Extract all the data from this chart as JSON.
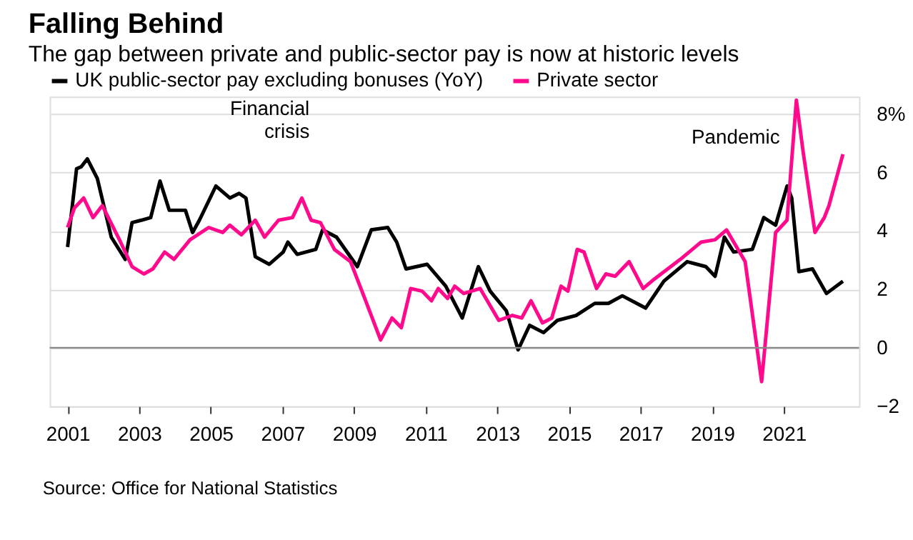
{
  "chart_data": {
    "type": "line",
    "title": "Falling Behind",
    "subtitle": "The gap between private and public-sector pay is now at historic levels",
    "series": [
      {
        "name": "UK public-sector pay excluding bonuses (YoY)",
        "color": "#000000",
        "x": [
          2001.0,
          2001.25,
          2001.38,
          2001.55,
          2001.83,
          2002.22,
          2002.61,
          2002.8,
          2003.06,
          2003.32,
          2003.58,
          2003.84,
          2004.29,
          2004.49,
          2004.68,
          2005.14,
          2005.53,
          2005.79,
          2005.98,
          2006.24,
          2006.63,
          2007.02,
          2007.15,
          2007.41,
          2007.93,
          2008.12,
          2008.51,
          2009.09,
          2009.48,
          2009.94,
          2010.19,
          2010.45,
          2011.04,
          2011.56,
          2012.02,
          2012.47,
          2012.8,
          2013.25,
          2013.58,
          2013.9,
          2014.29,
          2014.68,
          2015.2,
          2015.72,
          2016.1,
          2016.49,
          2017.14,
          2017.65,
          2018.3,
          2018.82,
          2019.08,
          2019.34,
          2019.6,
          2020.12,
          2020.44,
          2020.77,
          2021.09,
          2021.22,
          2021.42,
          2021.8,
          2022.19,
          2022.65
        ],
        "values": [
          3.45,
          6.13,
          6.2,
          6.47,
          5.8,
          3.79,
          3.03,
          4.29,
          4.37,
          4.46,
          5.71,
          4.71,
          4.71,
          3.95,
          4.37,
          5.54,
          5.13,
          5.29,
          5.13,
          3.12,
          2.86,
          3.28,
          3.62,
          3.2,
          3.37,
          4.04,
          3.79,
          2.78,
          4.04,
          4.12,
          3.62,
          2.7,
          2.86,
          2.11,
          1.02,
          2.78,
          1.94,
          1.27,
          -0.07,
          0.77,
          0.52,
          0.94,
          1.11,
          1.52,
          1.52,
          1.78,
          1.36,
          2.28,
          2.95,
          2.78,
          2.45,
          3.79,
          3.28,
          3.37,
          4.46,
          4.2,
          5.54,
          5.13,
          2.61,
          2.7,
          1.86,
          2.28
        ]
      },
      {
        "name": "Private sector",
        "color": "#ff0a8c",
        "x": [
          2001.0,
          2001.19,
          2001.45,
          2001.71,
          2001.97,
          2002.48,
          2002.8,
          2003.13,
          2003.38,
          2003.71,
          2003.97,
          2004.42,
          2004.94,
          2005.33,
          2005.53,
          2005.85,
          2006.24,
          2006.5,
          2006.89,
          2007.28,
          2007.54,
          2007.8,
          2008.06,
          2008.45,
          2008.9,
          2009.22,
          2009.74,
          2010.06,
          2010.32,
          2010.58,
          2010.9,
          2011.16,
          2011.35,
          2011.61,
          2011.81,
          2012.06,
          2012.52,
          2013.04,
          2013.42,
          2013.68,
          2013.94,
          2014.26,
          2014.52,
          2014.78,
          2014.97,
          2015.23,
          2015.42,
          2015.77,
          2016.03,
          2016.29,
          2016.68,
          2017.07,
          2017.39,
          2018.11,
          2018.69,
          2019.08,
          2019.4,
          2019.92,
          2020.38,
          2020.77,
          2021.09,
          2021.35,
          2021.54,
          2021.87,
          2022.13,
          2022.26,
          2022.65
        ],
        "values": [
          4.12,
          4.79,
          5.13,
          4.46,
          4.87,
          3.62,
          2.78,
          2.53,
          2.7,
          3.28,
          3.03,
          3.7,
          4.12,
          3.95,
          4.2,
          3.87,
          4.37,
          3.79,
          4.37,
          4.46,
          5.13,
          4.37,
          4.29,
          3.37,
          2.95,
          1.94,
          0.27,
          1.02,
          0.69,
          2.03,
          1.94,
          1.61,
          2.03,
          1.69,
          2.11,
          1.86,
          2.03,
          0.94,
          1.11,
          1.02,
          1.61,
          0.85,
          1.02,
          2.11,
          1.94,
          3.37,
          3.28,
          2.03,
          2.53,
          2.45,
          2.95,
          2.03,
          2.36,
          3.03,
          3.62,
          3.7,
          4.04,
          2.95,
          -1.16,
          3.95,
          4.37,
          8.48,
          6.7,
          3.95,
          4.46,
          4.87,
          6.63
        ]
      }
    ],
    "xlim": [
      2000.5,
      2023.1
    ],
    "xticks": [
      2001,
      2003,
      2005,
      2007,
      2009,
      2011,
      2013,
      2015,
      2017,
      2019,
      2021
    ],
    "ylim": [
      -2,
      8.6
    ],
    "yticks": [
      -2,
      0,
      2,
      4,
      6,
      {
        "value": 8,
        "label": "8%"
      }
    ],
    "grid": "y",
    "legend": "top left",
    "ref_lines": [
      {
        "axis": "y",
        "value": 0,
        "color": "#888888"
      }
    ],
    "annotations": [
      "Financial\ncrisis",
      "Pandemic",
      "Source: Office for National Statistics"
    ]
  }
}
